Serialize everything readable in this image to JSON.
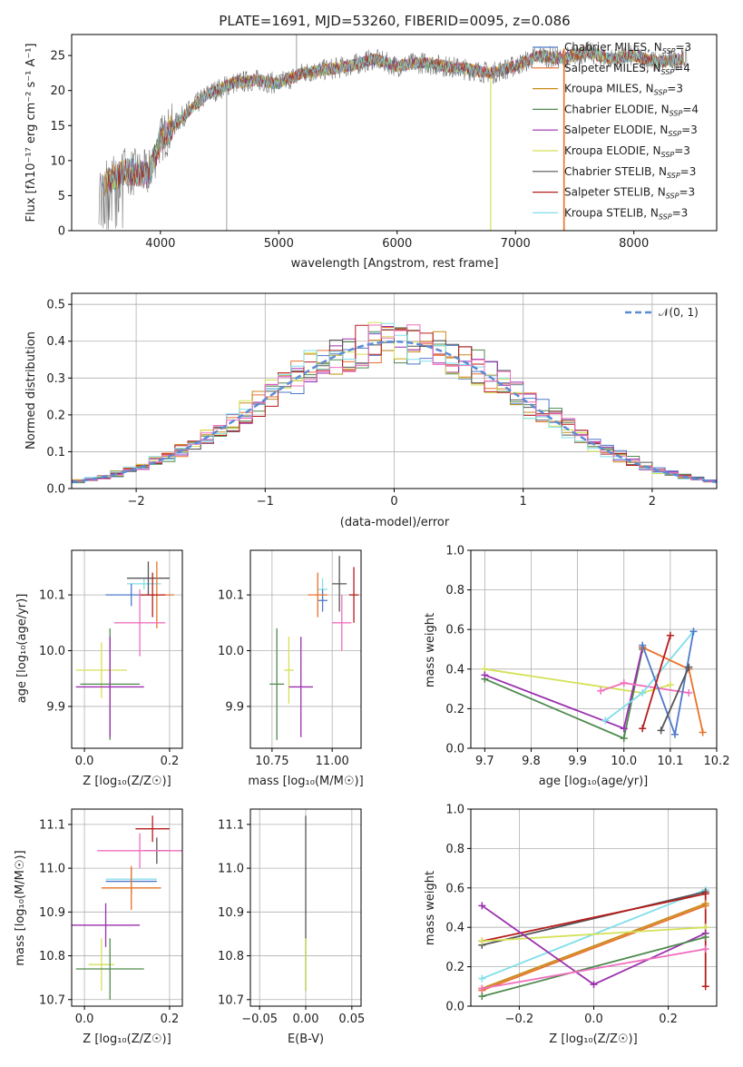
{
  "spectrum_panel": {
    "title": "PLATE=1691, MJD=53260, FIBERID=0095, z=0.086",
    "xlabel": "wavelength [Angstrom, rest frame]",
    "ylabel": "Flux [fλ10⁻¹⁷ erg cm⁻² s⁻¹ A⁻¹]",
    "xticks": [
      "4000",
      "5000",
      "6000",
      "7000",
      "8000"
    ],
    "yticks": [
      "0",
      "5",
      "10",
      "15",
      "20",
      "25"
    ],
    "legend": [
      {
        "label": "Chabrier MILES, N",
        "sub": "SSP",
        "n": "=3",
        "color": "#4e79c9"
      },
      {
        "label": "Salpeter MILES, N",
        "sub": "SSP",
        "n": "=4",
        "color": "#e8712a"
      },
      {
        "label": "Kroupa MILES, N",
        "sub": "SSP",
        "n": "=3",
        "color": "#c98a18"
      },
      {
        "label": "Chabrier ELODIE, N",
        "sub": "SSP",
        "n": "=4",
        "color": "#4f8a4f"
      },
      {
        "label": "Salpeter ELODIE, N",
        "sub": "SSP",
        "n": "=3",
        "color": "#9b2fae"
      },
      {
        "label": "Kroupa ELODIE, N",
        "sub": "SSP",
        "n": "=3",
        "color": "#d4e157"
      },
      {
        "label": "Chabrier STELIB, N",
        "sub": "SSP",
        "n": "=3",
        "color": "#555555"
      },
      {
        "label": "Salpeter STELIB, N",
        "sub": "SSP",
        "n": "=3",
        "color": "#b71c1c"
      },
      {
        "label": "Kroupa STELIB, N",
        "sub": "SSP",
        "n": "=3",
        "color": "#80deea"
      }
    ]
  },
  "residual_panel": {
    "xlabel": "(data-model)/error",
    "ylabel": "Normed distribution",
    "xticks": [
      "−2",
      "−1",
      "0",
      "1",
      "2"
    ],
    "yticks": [
      "0.0",
      "0.1",
      "0.2",
      "0.3",
      "0.4",
      "0.5"
    ],
    "legend_label": "𝒩(0, 1)"
  },
  "small_panels": {
    "age_vs_z": {
      "xlabel": "Z [log₁₀(Z/Z☉)]",
      "ylabel": "age  [log₁₀(age/yr)]",
      "xticks": [
        "0.0",
        "0.2"
      ],
      "yticks": [
        "9.9",
        "10.0",
        "10.1"
      ]
    },
    "age_vs_mass": {
      "xlabel": "mass [log₁₀(M/M☉)]",
      "xticks": [
        "10.75",
        "11.00"
      ],
      "yticks": [
        "9.9",
        "10.0",
        "10.1"
      ]
    },
    "weight_vs_age": {
      "xlabel": "age  [log₁₀(age/yr)]",
      "ylabel": "mass weight",
      "xticks": [
        "9.7",
        "9.8",
        "9.9",
        "10.0",
        "10.1",
        "10.2"
      ],
      "yticks": [
        "0.0",
        "0.2",
        "0.4",
        "0.6",
        "0.8",
        "1.0"
      ]
    },
    "mass_vs_z": {
      "xlabel": "Z [log₁₀(Z/Z☉)]",
      "ylabel": "mass [log₁₀(M/M☉)]",
      "xticks": [
        "0.0",
        "0.2"
      ],
      "yticks": [
        "10.7",
        "10.8",
        "10.9",
        "11.0",
        "11.1"
      ]
    },
    "mass_vs_ebv": {
      "xlabel": "E(B-V)",
      "xticks": [
        "−0.05",
        "0.00",
        "0.05"
      ],
      "yticks": [
        "10.7",
        "10.8",
        "10.9",
        "11.0",
        "11.1"
      ]
    },
    "weight_vs_z": {
      "xlabel": "Z [log₁₀(Z/Z☉)]",
      "ylabel": "mass weight",
      "xticks": [
        "−0.2",
        "0.0",
        "0.2"
      ],
      "yticks": [
        "0.0",
        "0.2",
        "0.4",
        "0.6",
        "0.8",
        "1.0"
      ]
    }
  },
  "chart_data": [
    {
      "type": "line",
      "panel": "spectrum",
      "title": "PLATE=1691, MJD=53260, FIBERID=0095, z=0.086",
      "xlabel": "wavelength [Angstrom, rest frame]",
      "ylabel": "Flux [fλ10⁻¹⁷ erg cm⁻² s⁻¹ A⁻¹]",
      "xlim": [
        3250,
        8700
      ],
      "ylim": [
        0,
        28
      ],
      "continuum": {
        "x": [
          3500,
          3700,
          3900,
          4000,
          4200,
          4400,
          4600,
          4800,
          5000,
          5200,
          5400,
          5600,
          5800,
          6000,
          6200,
          6400,
          6600,
          6800,
          7000,
          7200,
          7400,
          7600,
          7800,
          8000,
          8200,
          8400
        ],
        "y": [
          6.5,
          8.5,
          8.0,
          13.0,
          16.5,
          19.5,
          21.0,
          21.5,
          21.0,
          22.5,
          23.0,
          23.5,
          24.5,
          23.5,
          24.0,
          23.5,
          23.0,
          22.5,
          23.5,
          25.0,
          24.5,
          25.5,
          24.5,
          25.0,
          24.0,
          24.5
        ]
      },
      "series_colors": [
        "#4e79c9",
        "#e8712a",
        "#c98a18",
        "#4f8a4f",
        "#9b2fae",
        "#d4e157",
        "#555555",
        "#b71c1c",
        "#80deea"
      ]
    },
    {
      "type": "bar",
      "panel": "residual_histogram",
      "xlabel": "(data-model)/error",
      "ylabel": "Normed distribution",
      "xlim": [
        -2.5,
        2.5
      ],
      "ylim": [
        0,
        0.53
      ],
      "bin_width": 0.1,
      "reference_curve": "N(0,1)"
    },
    {
      "type": "scatter",
      "panel": "age_vs_Z",
      "xlim": [
        -0.03,
        0.23
      ],
      "ylim": [
        9.825,
        10.18
      ],
      "points": [
        {
          "x": 0.14,
          "xerr": 0.04,
          "y": 10.12,
          "yerr": 0.01,
          "color": "#80deea"
        },
        {
          "x": 0.15,
          "xerr": 0.05,
          "y": 10.13,
          "yerr": 0.03,
          "color": "#555555"
        },
        {
          "x": 0.11,
          "xerr": 0.06,
          "y": 10.1,
          "yerr": 0.02,
          "color": "#4e79c9"
        },
        {
          "x": 0.17,
          "xerr": 0.04,
          "y": 10.1,
          "yerr": 0.06,
          "color": "#e8712a"
        },
        {
          "x": 0.16,
          "xerr": 0.03,
          "y": 10.1,
          "yerr": 0.04,
          "color": "#b71c1c"
        },
        {
          "x": 0.13,
          "xerr": 0.06,
          "y": 10.05,
          "yerr": 0.06,
          "color": "#f06fbd"
        },
        {
          "x": 0.04,
          "xerr": 0.06,
          "y": 9.965,
          "yerr": 0.05,
          "color": "#d4e157"
        },
        {
          "x": 0.06,
          "xerr": 0.07,
          "y": 9.94,
          "yerr": 0.1,
          "color": "#4f8a4f"
        },
        {
          "x": 0.06,
          "xerr": 0.08,
          "y": 9.935,
          "yerr": 0.09,
          "color": "#9b2fae"
        }
      ]
    },
    {
      "type": "scatter",
      "panel": "age_vs_mass",
      "xlim": [
        10.66,
        11.12
      ],
      "ylim": [
        9.825,
        10.18
      ],
      "points": [
        {
          "x": 10.96,
          "xerr": 0.02,
          "y": 10.11,
          "yerr": 0.02,
          "color": "#80deea"
        },
        {
          "x": 10.96,
          "xerr": 0.02,
          "y": 10.09,
          "yerr": 0.02,
          "color": "#4e79c9"
        },
        {
          "x": 10.94,
          "xerr": 0.04,
          "y": 10.1,
          "yerr": 0.04,
          "color": "#e8712a"
        },
        {
          "x": 11.03,
          "xerr": 0.03,
          "y": 10.12,
          "yerr": 0.05,
          "color": "#555555"
        },
        {
          "x": 11.09,
          "xerr": 0.02,
          "y": 10.1,
          "yerr": 0.05,
          "color": "#b71c1c"
        },
        {
          "x": 11.04,
          "xerr": 0.04,
          "y": 10.05,
          "yerr": 0.05,
          "color": "#f06fbd"
        },
        {
          "x": 10.82,
          "xerr": 0.02,
          "y": 9.965,
          "yerr": 0.06,
          "color": "#d4e157"
        },
        {
          "x": 10.77,
          "xerr": 0.03,
          "y": 9.94,
          "yerr": 0.1,
          "color": "#4f8a4f"
        },
        {
          "x": 10.87,
          "xerr": 0.05,
          "y": 9.935,
          "yerr": 0.09,
          "color": "#9b2fae"
        }
      ]
    },
    {
      "type": "line",
      "panel": "weight_vs_age",
      "xlim": [
        9.67,
        10.2
      ],
      "ylim": [
        0,
        1
      ],
      "series": [
        {
          "color": "#d4e157",
          "x": [
            9.7,
            10.04,
            10.1
          ],
          "y": [
            0.4,
            0.28,
            0.32
          ]
        },
        {
          "color": "#4f8a4f",
          "x": [
            9.7,
            10.0,
            10.04
          ],
          "y": [
            0.35,
            0.05,
            0.5
          ]
        },
        {
          "color": "#9b2fae",
          "x": [
            9.7,
            10.0,
            10.04
          ],
          "y": [
            0.37,
            0.1,
            0.51
          ]
        },
        {
          "color": "#f06fbd",
          "x": [
            9.95,
            10.0,
            10.14
          ],
          "y": [
            0.29,
            0.33,
            0.28
          ]
        },
        {
          "color": "#80deea",
          "x": [
            9.96,
            10.04,
            10.15
          ],
          "y": [
            0.14,
            0.28,
            0.59
          ]
        },
        {
          "color": "#e8712a",
          "x": [
            10.04,
            10.14,
            10.17
          ],
          "y": [
            0.51,
            0.4,
            0.08
          ]
        },
        {
          "color": "#4e79c9",
          "x": [
            10.04,
            10.11,
            10.15
          ],
          "y": [
            0.52,
            0.07,
            0.59
          ]
        },
        {
          "color": "#555555",
          "x": [
            10.08,
            10.14
          ],
          "y": [
            0.09,
            0.41
          ]
        },
        {
          "color": "#b71c1c",
          "x": [
            10.04,
            10.1
          ],
          "y": [
            0.1,
            0.57
          ]
        }
      ]
    },
    {
      "type": "scatter",
      "panel": "mass_vs_Z",
      "xlim": [
        -0.03,
        0.23
      ],
      "ylim": [
        10.685,
        11.135
      ],
      "points": [
        {
          "x": 0.16,
          "xerr": 0.04,
          "y": 11.09,
          "yerr": 0.03,
          "color": "#b71c1c"
        },
        {
          "x": 0.17,
          "xerr": 0.03,
          "y": 11.04,
          "yerr": 0.03,
          "color": "#555555"
        },
        {
          "x": 0.13,
          "xerr": 0.1,
          "y": 11.04,
          "yerr": 0.04,
          "color": "#f06fbd"
        },
        {
          "x": 0.11,
          "xerr": 0.06,
          "y": 10.97,
          "yerr": 0.03,
          "color": "#4e79c9"
        },
        {
          "x": 0.11,
          "xerr": 0.06,
          "y": 10.975,
          "yerr": 0.02,
          "color": "#80deea"
        },
        {
          "x": 0.11,
          "xerr": 0.07,
          "y": 10.955,
          "yerr": 0.05,
          "color": "#e8712a"
        },
        {
          "x": 0.05,
          "xerr": 0.08,
          "y": 10.87,
          "yerr": 0.05,
          "color": "#9b2fae"
        },
        {
          "x": 0.04,
          "xerr": 0.03,
          "y": 10.78,
          "yerr": 0.06,
          "color": "#d4e157"
        },
        {
          "x": 0.06,
          "xerr": 0.08,
          "y": 10.77,
          "yerr": 0.07,
          "color": "#4f8a4f"
        }
      ]
    },
    {
      "type": "scatter",
      "panel": "mass_vs_EBV",
      "xlim": [
        -0.06,
        0.06
      ],
      "ylim": [
        10.685,
        11.135
      ],
      "points": [
        {
          "x": 0.0,
          "xerr": 0.0,
          "y": 10.92,
          "yerr": 0.2,
          "color": "#555555"
        },
        {
          "x": 0.0,
          "xerr": 0.0,
          "y": 10.78,
          "yerr": 0.06,
          "color": "#d4e157"
        }
      ]
    },
    {
      "type": "line",
      "panel": "weight_vs_Z",
      "xlim": [
        -0.33,
        0.33
      ],
      "ylim": [
        0,
        1
      ],
      "series": [
        {
          "color": "#80deea",
          "x": [
            -0.3,
            0.3
          ],
          "y": [
            0.14,
            0.59
          ]
        },
        {
          "color": "#555555",
          "x": [
            -0.3,
            0.3
          ],
          "y": [
            0.31,
            0.58
          ]
        },
        {
          "color": "#b71c1c",
          "x": [
            -0.3,
            0.3,
            0.3
          ],
          "y": [
            0.33,
            0.57,
            0.1
          ]
        },
        {
          "color": "#e8712a",
          "x": [
            -0.3,
            0.3
          ],
          "y": [
            0.08,
            0.51
          ]
        },
        {
          "color": "#c98a18",
          "x": [
            -0.3,
            0.3
          ],
          "y": [
            0.09,
            0.52
          ]
        },
        {
          "color": "#d4e157",
          "x": [
            -0.3,
            0.3
          ],
          "y": [
            0.33,
            0.4
          ]
        },
        {
          "color": "#9b2fae",
          "x": [
            -0.3,
            0.0,
            0.3
          ],
          "y": [
            0.51,
            0.11,
            0.37
          ]
        },
        {
          "color": "#4f8a4f",
          "x": [
            -0.3,
            0.3
          ],
          "y": [
            0.05,
            0.35
          ]
        },
        {
          "color": "#f06fbd",
          "x": [
            -0.3,
            0.3
          ],
          "y": [
            0.09,
            0.29
          ]
        }
      ]
    }
  ]
}
